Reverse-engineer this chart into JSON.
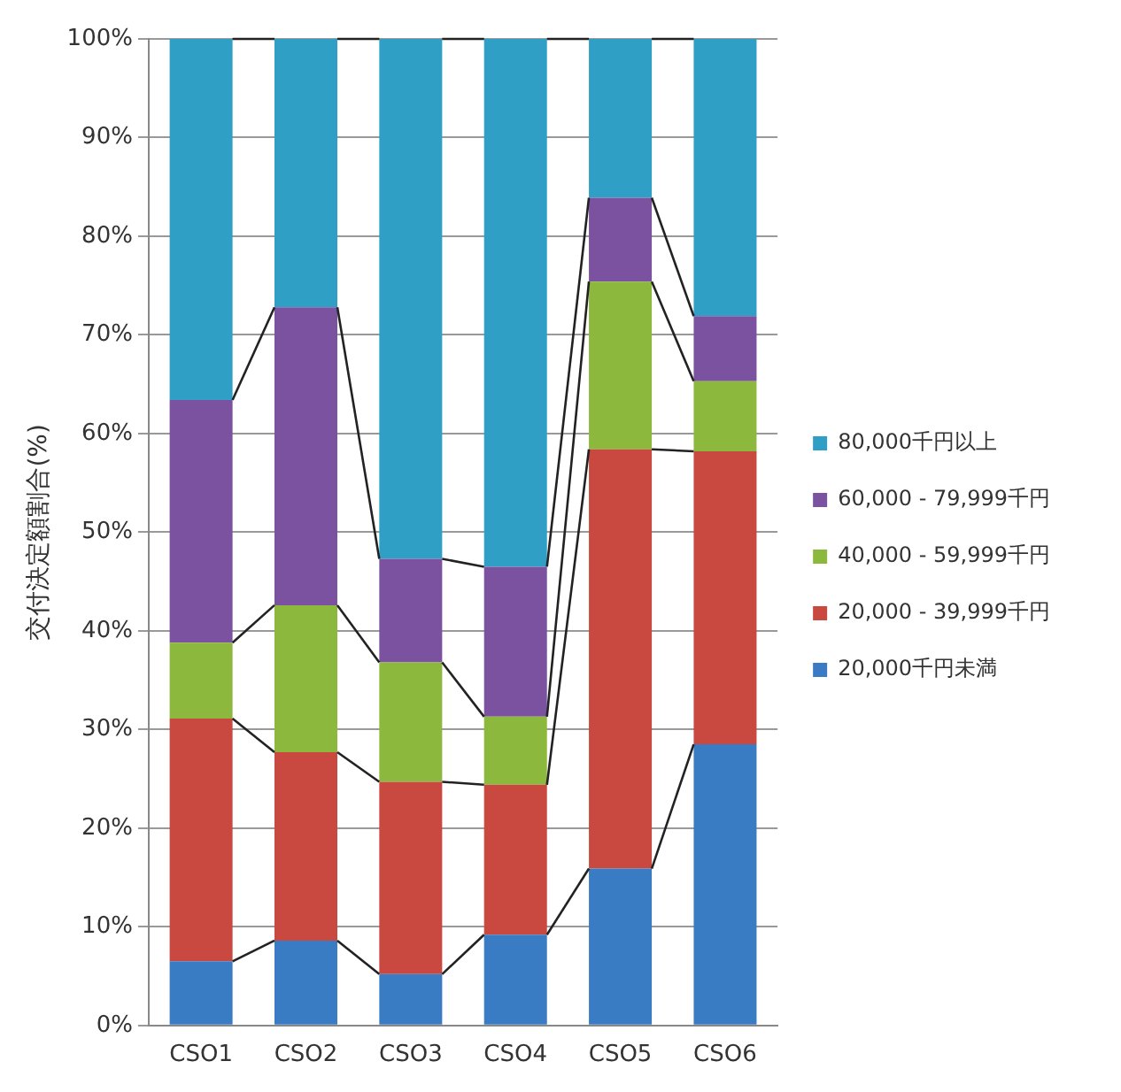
{
  "chart_data": {
    "type": "bar",
    "stacked": true,
    "ylabel": "交付決定額割合(%)",
    "categories": [
      "CSO1",
      "CSO2",
      "CSO3",
      "CSO4",
      "CSO5",
      "CSO6"
    ],
    "series": [
      {
        "name": "20,000千円未満",
        "color": "#3a7cc4",
        "values": [
          6.5,
          8.6,
          5.2,
          9.2,
          15.9,
          28.5
        ]
      },
      {
        "name": "20,000 - 39,999千円",
        "color": "#c9483f",
        "values": [
          24.6,
          19.1,
          19.5,
          15.2,
          42.5,
          29.7
        ]
      },
      {
        "name": "40,000 - 59,999千円",
        "color": "#8db83e",
        "values": [
          7.7,
          14.9,
          12.1,
          6.9,
          17.0,
          7.1
        ]
      },
      {
        "name": "60,000 - 79,999千円",
        "color": "#7b52a0",
        "values": [
          24.6,
          30.2,
          10.5,
          15.2,
          8.5,
          6.6
        ]
      },
      {
        "name": "80,000千円以上",
        "color": "#2f9fc6",
        "values": [
          36.6,
          27.2,
          52.7,
          53.5,
          16.1,
          28.1
        ]
      }
    ],
    "ylim": [
      0,
      100
    ],
    "yticks": [
      {
        "value": 0,
        "label": "0%"
      },
      {
        "value": 10,
        "label": "10%"
      },
      {
        "value": 20,
        "label": "20%"
      },
      {
        "value": 30,
        "label": "30%"
      },
      {
        "value": 40,
        "label": "40%"
      },
      {
        "value": 50,
        "label": "50%"
      },
      {
        "value": 60,
        "label": "60%"
      },
      {
        "value": 70,
        "label": "70%"
      },
      {
        "value": 80,
        "label": "80%"
      },
      {
        "value": 90,
        "label": "90%"
      },
      {
        "value": 100,
        "label": "100%"
      }
    ],
    "grid": "y",
    "legend": "right"
  }
}
